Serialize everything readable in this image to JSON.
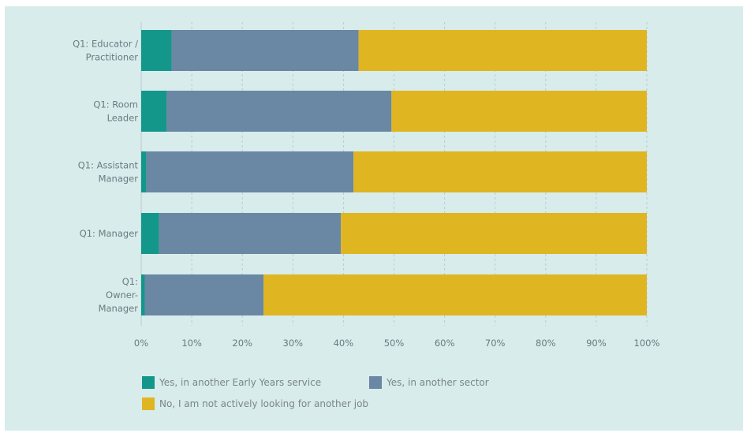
{
  "chart_data": {
    "type": "bar",
    "orientation": "horizontal",
    "stacked": true,
    "categories": [
      [
        "Q1: Educator /",
        "Practitioner"
      ],
      [
        "Q1: Room",
        "Leader"
      ],
      [
        "Q1: Assistant",
        "Manager"
      ],
      [
        "Q1: Manager"
      ],
      [
        "Q1:",
        "Owner-",
        "Manager"
      ]
    ],
    "series": [
      {
        "name": "Yes, in another Early Years service",
        "color": "#13978b",
        "values": [
          6,
          5,
          1,
          3.5,
          0.7
        ]
      },
      {
        "name": "Yes, in another sector",
        "color": "#6a87a4",
        "values": [
          37,
          44.5,
          41,
          36,
          23.5
        ]
      },
      {
        "name": "No, I am not actively looking for another job",
        "color": "#dfb521",
        "values": [
          57,
          50.5,
          58,
          60.5,
          75.8
        ]
      }
    ],
    "xlim": [
      0,
      100
    ],
    "xticks": [
      "0%",
      "10%",
      "20%",
      "30%",
      "40%",
      "50%",
      "60%",
      "70%",
      "80%",
      "90%",
      "100%"
    ],
    "grid": "vertical dashed",
    "legend_position": "bottom"
  }
}
